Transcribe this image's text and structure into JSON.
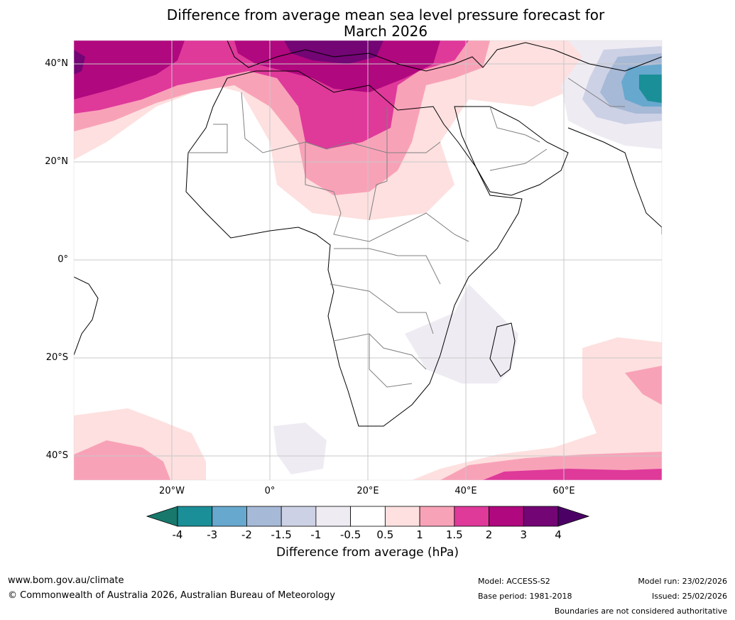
{
  "title": {
    "line1": "Difference from average mean sea level pressure forecast for",
    "line2": "March 2026"
  },
  "axes": {
    "lat_labels": [
      "40°N",
      "20°N",
      "0°",
      "20°S",
      "40°S"
    ],
    "lon_labels": [
      "20°W",
      "0°",
      "20°E",
      "40°E",
      "60°E"
    ]
  },
  "colorbar": {
    "ticks": [
      "-4",
      "-3",
      "-2",
      "-1.5",
      "-1",
      "-0.5",
      "0.5",
      "1",
      "1.5",
      "2",
      "3",
      "4"
    ],
    "colors": [
      "#17786b",
      "#1a8f97",
      "#67a8ce",
      "#a6b9d6",
      "#cdd1e5",
      "#efebf3",
      "#ffffff",
      "#fde0df",
      "#f8a2b8",
      "#df399a",
      "#b0087e",
      "#730575",
      "#4b0066"
    ],
    "label": "Difference from average (hPa)"
  },
  "footer": {
    "url": "www.bom.gov.au/climate",
    "copyright": "© Commonwealth of Australia 2026, Australian Bureau of Meteorology",
    "model": "Model: ACCESS-S2",
    "base_period": "Base period: 1981-2018",
    "model_run": "Model run: 23/02/2026",
    "issued": "Issued: 25/02/2026",
    "disclaimer": "Boundaries are not considered authoritative"
  }
}
